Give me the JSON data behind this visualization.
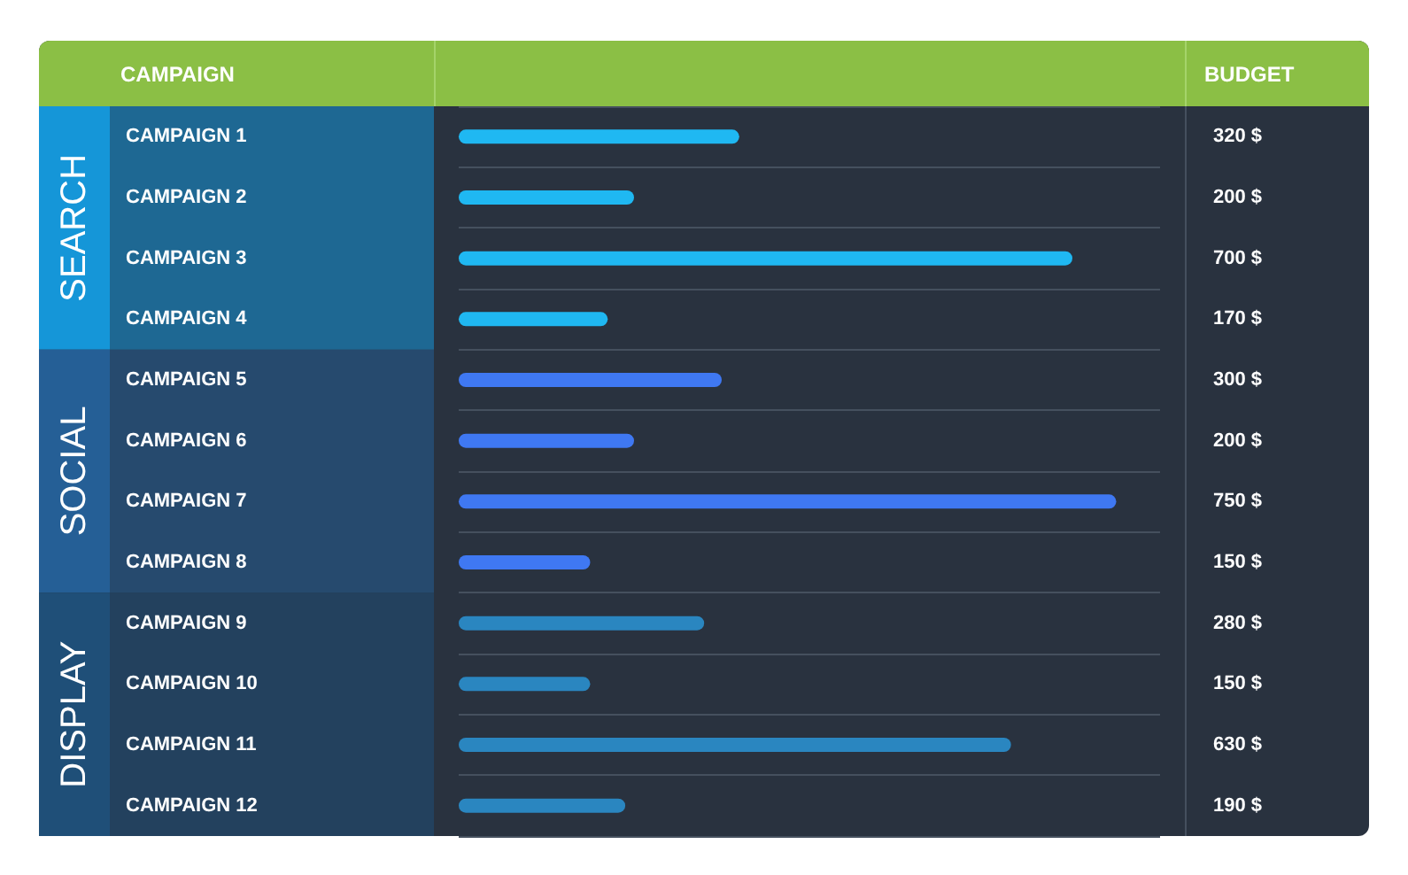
{
  "chart_data": {
    "type": "bar",
    "orientation": "horizontal",
    "ylabel": "CAMPAIGN",
    "xlabel": "BUDGET",
    "categories": [
      "CAMPAIGN 1",
      "CAMPAIGN 2",
      "CAMPAIGN 3",
      "CAMPAIGN 4",
      "CAMPAIGN 5",
      "CAMPAIGN 6",
      "CAMPAIGN 7",
      "CAMPAIGN 8",
      "CAMPAIGN 9",
      "CAMPAIGN 10",
      "CAMPAIGN 11",
      "CAMPAIGN 12"
    ],
    "values": [
      320,
      200,
      700,
      170,
      300,
      200,
      750,
      150,
      280,
      150,
      630,
      190
    ],
    "value_labels": [
      "320 $",
      "200 $",
      "700 $",
      "170 $",
      "300 $",
      "200 $",
      "750 $",
      "150 $",
      "280 $",
      "150 $",
      "630 $",
      "190 $"
    ],
    "colors": [
      "#1fb8f2",
      "#1fb8f2",
      "#1fb8f2",
      "#1fb8f2",
      "#3f78f2",
      "#3f78f2",
      "#3f78f2",
      "#3f78f2",
      "#2a86c0",
      "#2a86c0",
      "#2a86c0",
      "#2a86c0"
    ],
    "annotations": [
      "SEARCH",
      "SOCIAL",
      "DISPLAY"
    ],
    "grid": "y"
  }
}
